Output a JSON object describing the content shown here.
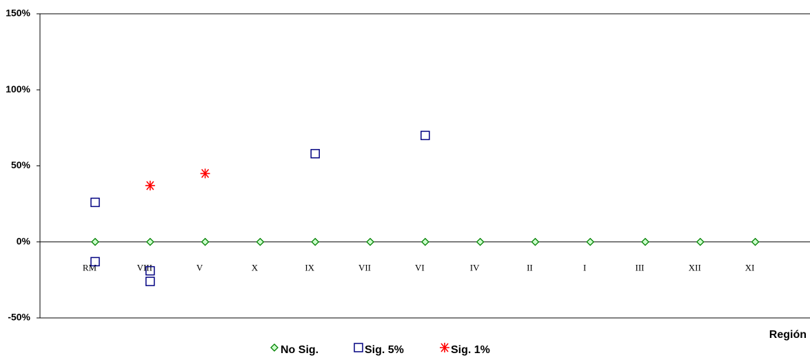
{
  "chart_data": {
    "type": "category-scatter",
    "x_label": "Región",
    "categories": [
      "RM",
      "VIII",
      "V",
      "X",
      "IX",
      "VII",
      "VI",
      "IV",
      "II",
      "I",
      "III",
      "XII",
      "XI"
    ],
    "ylim": [
      -50,
      150
    ],
    "yticks": [
      {
        "value": -50,
        "label": "-50%"
      },
      {
        "value": 0,
        "label": "0%"
      },
      {
        "value": 50,
        "label": "50%"
      },
      {
        "value": 100,
        "label": "100%"
      },
      {
        "value": 150,
        "label": "150%"
      }
    ],
    "series": [
      {
        "name": "No Sig.",
        "color": "#008000",
        "marker": "diamond",
        "x": [
          "RM",
          "VIII",
          "V",
          "X",
          "IX",
          "VII",
          "VI",
          "IV",
          "II",
          "I",
          "III",
          "XII",
          "XI"
        ],
        "values": [
          0,
          0,
          0,
          0,
          0,
          0,
          0,
          0,
          0,
          0,
          0,
          0,
          0
        ]
      },
      {
        "name": "Sig. 5%",
        "color": "#000080",
        "marker": "square",
        "x": [
          "RM",
          "RM",
          "VIII",
          "VIII",
          "IX",
          "VI"
        ],
        "values": [
          26,
          -13,
          -19,
          -26,
          58,
          70
        ]
      },
      {
        "name": "Sig. 1%",
        "color": "#ff0000",
        "marker": "star",
        "x": [
          "VIII",
          "V"
        ],
        "values": [
          37,
          45
        ]
      }
    ]
  }
}
